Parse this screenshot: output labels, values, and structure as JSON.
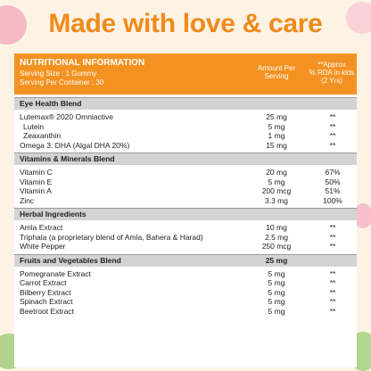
{
  "headline": {
    "normal": "Made with ",
    "bold": "love & care"
  },
  "header": {
    "title": "NUTRITIONAL INFORMATION",
    "serving_size": "Serving Size : 1 Gummy",
    "servings_per_container": "Serving Per Container : 30",
    "amount_col": [
      "Amount Per",
      "Serving"
    ],
    "rda_col": [
      "**Approx",
      "% RDA in kids",
      "(2 Yrs)"
    ]
  },
  "sections": [
    {
      "name": "Eye Health Blend",
      "amount": "",
      "rows": [
        {
          "name": "Lutemax® 2020 Omniactive",
          "amount": "25 mg",
          "rda": "**",
          "indent": false
        },
        {
          "name": "Lutein",
          "amount": "5 mg",
          "rda": "**",
          "indent": true
        },
        {
          "name": "Zeaxanthin",
          "amount": "1 mg",
          "rda": "**",
          "indent": true
        },
        {
          "name": "Omega 3: DHA (Algal DHA 20%)",
          "amount": "15 mg",
          "rda": "**",
          "indent": false
        }
      ]
    },
    {
      "name": "Vitamins & Minerals Blend",
      "amount": "",
      "rows": [
        {
          "name": "Vitamin C",
          "amount": "20 mg",
          "rda": "67%",
          "indent": false
        },
        {
          "name": "Vitamin E",
          "amount": "5 mg",
          "rda": "50%",
          "indent": false
        },
        {
          "name": "Vitamin A",
          "amount": "200 mcg",
          "rda": "51%",
          "indent": false
        },
        {
          "name": "Zinc",
          "amount": "3.3 mg",
          "rda": "100%",
          "indent": false
        }
      ]
    },
    {
      "name": "Herbal Ingredients",
      "amount": "",
      "rows": [
        {
          "name": "Amla Extract",
          "amount": "10 mg",
          "rda": "**",
          "indent": false
        },
        {
          "name": "Triphala (a proprietary blend of Amla, Bahera & Harad)",
          "amount": "2.5 mg",
          "rda": "**",
          "indent": false
        },
        {
          "name": "White Pepper",
          "amount": "250 mcg",
          "rda": "**",
          "indent": false
        }
      ]
    },
    {
      "name": "Fruits and Vegetables Blend",
      "amount": "25 mg",
      "rows": [
        {
          "name": "Pomegranate Extract",
          "amount": "5 mg",
          "rda": "**",
          "indent": false
        },
        {
          "name": "Carrot Extract",
          "amount": "5 mg",
          "rda": "**",
          "indent": false
        },
        {
          "name": "Bilberry Extract",
          "amount": "5 mg",
          "rda": "**",
          "indent": false
        },
        {
          "name": "Spinach Extract",
          "amount": "5 mg",
          "rda": "**",
          "indent": false
        },
        {
          "name": "Beetroot Extract",
          "amount": "5 mg",
          "rda": "**",
          "indent": false
        }
      ]
    }
  ]
}
